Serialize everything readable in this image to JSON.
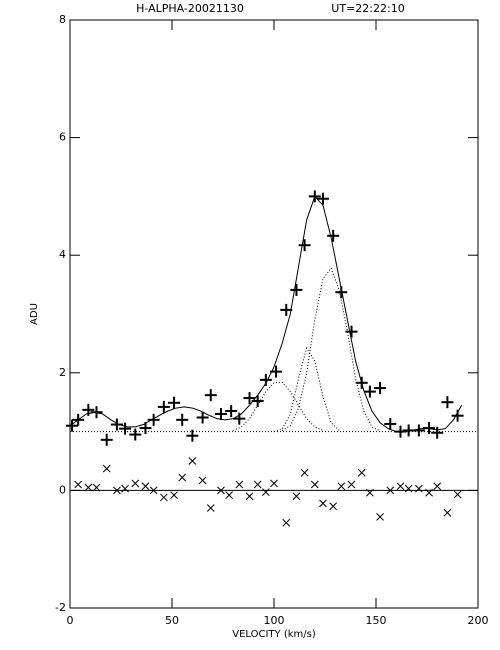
{
  "chart_data": {
    "type": "line",
    "title": "H-ALPHA-20021130",
    "subtitle": "UT=22:22:10",
    "xlabel": "VELOCITY (km/s)",
    "ylabel": "ADU",
    "xlim": [
      0,
      200
    ],
    "xticks": [
      0,
      50,
      100,
      150,
      200
    ],
    "ylim": [
      -2,
      8
    ],
    "yticks": [
      -2,
      0,
      2,
      4,
      6,
      8
    ],
    "hlines": [
      {
        "y": 1,
        "style": "dotted"
      },
      {
        "y": 0,
        "style": "solid"
      }
    ],
    "series": [
      {
        "marker": "plus",
        "color": "#000000",
        "x": [
          1,
          4,
          9,
          13,
          18,
          23,
          27,
          32,
          37,
          41,
          46,
          51,
          55,
          60,
          65,
          69,
          74,
          79,
          83,
          88,
          92,
          96,
          101,
          106,
          111,
          115,
          120,
          124,
          129,
          133,
          138,
          143,
          147,
          152,
          157,
          162,
          166,
          171,
          176,
          180,
          185,
          190
        ],
        "values": [
          1.1,
          1.2,
          1.37,
          1.33,
          0.86,
          1.12,
          1.05,
          0.95,
          1.06,
          1.2,
          1.42,
          1.49,
          1.2,
          0.93,
          1.24,
          1.62,
          1.3,
          1.35,
          1.22,
          1.57,
          1.52,
          1.88,
          2.02,
          3.07,
          3.41,
          4.17,
          5.0,
          4.96,
          4.33,
          3.37,
          2.7,
          1.83,
          1.68,
          1.74,
          1.13,
          1.0,
          1.02,
          1.02,
          1.06,
          0.98,
          1.5,
          1.27
        ]
      },
      {
        "marker": "cross",
        "color": "#000000",
        "x": [
          4,
          9,
          13,
          18,
          23,
          27,
          32,
          37,
          41,
          46,
          51,
          55,
          60,
          65,
          69,
          74,
          78,
          83,
          88,
          92,
          96,
          100,
          106,
          111,
          115,
          120,
          124,
          129,
          133,
          138,
          143,
          147,
          152,
          157,
          162,
          166,
          171,
          176,
          180,
          185,
          190
        ],
        "values": [
          0.1,
          0.05,
          0.05,
          0.37,
          0,
          0.03,
          0.12,
          0.07,
          0,
          -0.12,
          -0.08,
          0.22,
          0.5,
          0.17,
          -0.3,
          0,
          -0.08,
          0.1,
          -0.1,
          0.1,
          -0.03,
          0.12,
          -0.55,
          -0.1,
          0.3,
          0.1,
          -0.22,
          -0.27,
          0.07,
          0.1,
          0.3,
          -0.04,
          -0.45,
          0,
          0.07,
          0.03,
          0.03,
          -0.04,
          0.07,
          -0.38,
          -0.07
        ]
      },
      {
        "line_style": "solid",
        "color": "#000000",
        "x": [
          0,
          4,
          8,
          12,
          16,
          20,
          24,
          28,
          32,
          36,
          40,
          44,
          48,
          52,
          56,
          60,
          64,
          68,
          72,
          76,
          80,
          84,
          88,
          92,
          96,
          100,
          104,
          108,
          112,
          116,
          120,
          124,
          128,
          132,
          136,
          140,
          144,
          148,
          152,
          156,
          160,
          164,
          168,
          172,
          176,
          180,
          184,
          188,
          192
        ],
        "values": [
          1.1,
          1.2,
          1.3,
          1.33,
          1.3,
          1.2,
          1.12,
          1.08,
          1.08,
          1.12,
          1.2,
          1.28,
          1.35,
          1.4,
          1.42,
          1.4,
          1.35,
          1.28,
          1.22,
          1.2,
          1.22,
          1.3,
          1.45,
          1.62,
          1.82,
          2.1,
          2.5,
          3.0,
          3.8,
          4.6,
          5.0,
          4.85,
          4.3,
          3.6,
          2.9,
          2.2,
          1.7,
          1.35,
          1.15,
          1.05,
          1.0,
          1.0,
          1.02,
          1.05,
          1.05,
          1.03,
          1.05,
          1.2,
          1.45
        ]
      },
      {
        "line_style": "dotted",
        "color": "#000000",
        "x": [
          80,
          84,
          88,
          92,
          96,
          100,
          104,
          108,
          112,
          116,
          120,
          124
        ],
        "values": [
          1.02,
          1.08,
          1.22,
          1.45,
          1.68,
          1.83,
          1.84,
          1.68,
          1.45,
          1.22,
          1.08,
          1.02
        ]
      },
      {
        "line_style": "dotted",
        "color": "#000000",
        "x": [
          100,
          104,
          108,
          112,
          116,
          120,
          124,
          128,
          132
        ],
        "values": [
          1.0,
          1.04,
          1.3,
          1.9,
          2.42,
          2.2,
          1.6,
          1.15,
          1.02
        ]
      },
      {
        "line_style": "dotted",
        "color": "#000000",
        "x": [
          104,
          108,
          112,
          116,
          120,
          124,
          128,
          132,
          136,
          140,
          144,
          148,
          152
        ],
        "values": [
          1.02,
          1.1,
          1.4,
          2.0,
          2.9,
          3.6,
          3.78,
          3.4,
          2.7,
          1.9,
          1.35,
          1.08,
          1.01
        ]
      }
    ]
  }
}
